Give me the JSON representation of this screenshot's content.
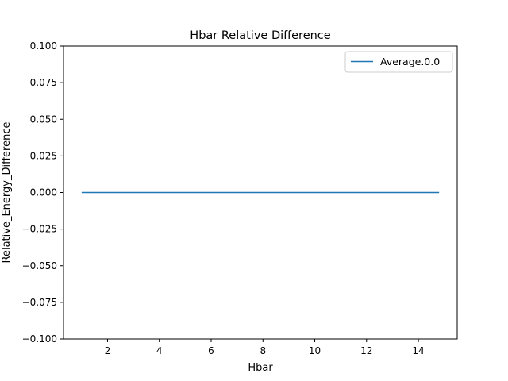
{
  "chart_data": {
    "type": "line",
    "title": "Hbar Relative Difference",
    "xlabel": "Hbar",
    "ylabel": "Relative_Energy_Difference",
    "xlim": [
      0.3,
      15.5
    ],
    "ylim": [
      -0.1,
      0.1
    ],
    "xticks": [
      2,
      4,
      6,
      8,
      10,
      12,
      14
    ],
    "yticks": [
      0.1,
      0.075,
      0.05,
      0.025,
      0.0,
      -0.025,
      -0.05,
      -0.075,
      -0.1
    ],
    "ytick_labels": [
      "0.100",
      "0.075",
      "0.050",
      "0.025",
      "0.000",
      "−0.025",
      "−0.050",
      "−0.075",
      "−0.100"
    ],
    "grid": false,
    "legend_position": "top-right",
    "series": [
      {
        "name": "Average.0.0",
        "color": "#1f77b4",
        "x": [
          1.0,
          14.8
        ],
        "y": [
          0.0,
          0.0
        ]
      }
    ]
  }
}
